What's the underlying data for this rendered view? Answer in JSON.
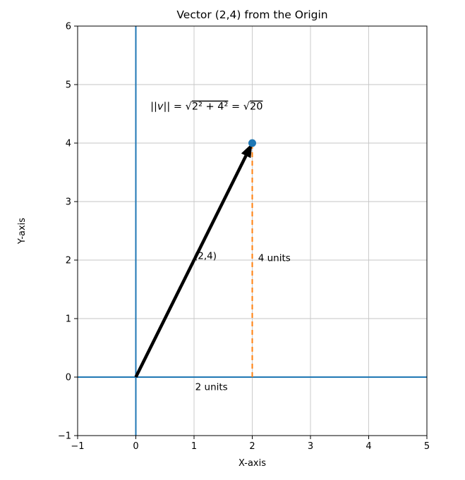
{
  "chart_data": {
    "type": "line",
    "title": "Vector (2,4) from the Origin",
    "xlabel": "X-axis",
    "ylabel": "Y-axis",
    "xlim": [
      -1,
      5
    ],
    "ylim": [
      -1,
      6
    ],
    "xticks": [
      -1,
      0,
      1,
      2,
      3,
      4,
      5
    ],
    "yticks": [
      -1,
      0,
      1,
      2,
      3,
      4,
      5,
      6
    ],
    "grid": true,
    "grid_color": "#c6c6c6",
    "axis_line_color": "#1f77b4",
    "vector": {
      "from": [
        0,
        0
      ],
      "to": [
        2,
        4
      ],
      "color": "#000000"
    },
    "endpoint": {
      "x": 2,
      "y": 4,
      "color": "#1f77b4",
      "radius": 5.5
    },
    "dashed_line": {
      "from": [
        2,
        0
      ],
      "to": [
        2,
        4
      ],
      "color": "#ff7f0e",
      "style": "dashed"
    },
    "annotations": [
      {
        "name": "norm-formula",
        "x": 0.25,
        "y": 4.57,
        "font_size": 14.5,
        "parts": [
          {
            "t": "||"
          },
          {
            "t": "v",
            "italic": true
          },
          {
            "t": "|| = "
          },
          {
            "t": "√"
          },
          {
            "t": "2² + 4²",
            "overline": true
          },
          {
            "t": " = "
          },
          {
            "t": "√"
          },
          {
            "t": "20",
            "overline": true
          }
        ]
      },
      {
        "name": "vector-label",
        "x": 1.0,
        "y": 2.02,
        "text": "(2,4)"
      },
      {
        "name": "height-label",
        "x": 2.1,
        "y": 1.98,
        "text": "4 units"
      },
      {
        "name": "base-label",
        "x": 1.02,
        "y": -0.22,
        "text": "2 units"
      }
    ]
  }
}
